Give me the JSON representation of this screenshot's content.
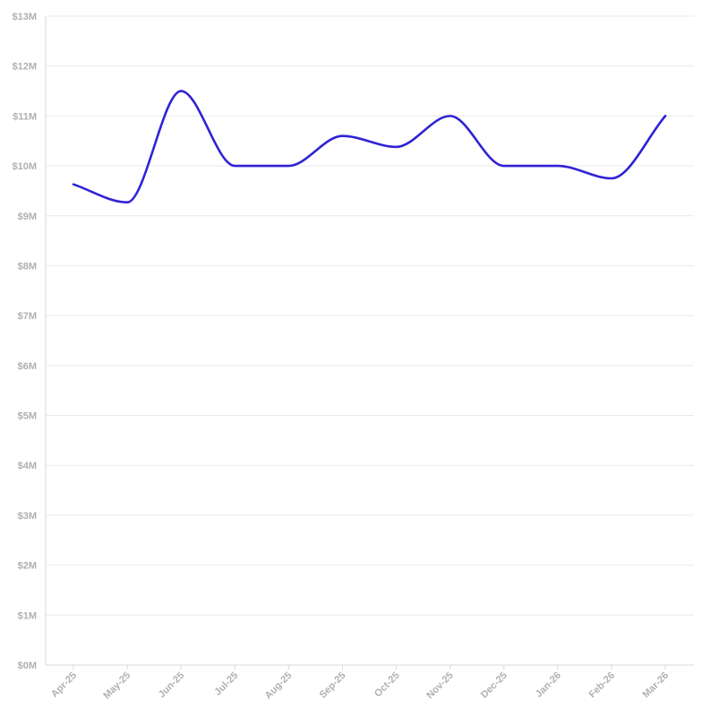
{
  "colors": {
    "series": "#2f23d4",
    "grid": "#e9e9e9",
    "tick_text": "#b0b0b0"
  },
  "chart_data": {
    "type": "line",
    "title": "",
    "xlabel": "",
    "ylabel": "",
    "grid": true,
    "categories": [
      "Apr-25",
      "May-25",
      "Jun-25",
      "Jul-25",
      "Aug-25",
      "Sep-25",
      "Oct-25",
      "Nov-25",
      "Dec-25",
      "Jan-26",
      "Feb-26",
      "Mar-26"
    ],
    "ylim": [
      0,
      13
    ],
    "y_ticks": [
      "$0M",
      "$1M",
      "$2M",
      "$3M",
      "$4M",
      "$5M",
      "$6M",
      "$7M",
      "$8M",
      "$9M",
      "$10M",
      "$11M",
      "$12M",
      "$13M"
    ],
    "series": [
      {
        "values": [
          9.63,
          9.27,
          11.5,
          10.0,
          10.0,
          10.6,
          10.38,
          11.0,
          10.0,
          10.0,
          9.75,
          11.0
        ]
      }
    ]
  }
}
